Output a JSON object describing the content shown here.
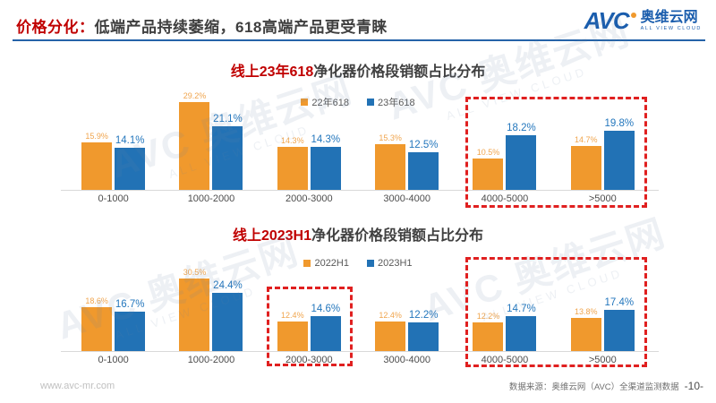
{
  "header": {
    "title_red": "价格分化：",
    "title_rest": "低端产品持续萎缩，618高端产品更受青睐"
  },
  "logo": {
    "abbr": "AVC",
    "name": "奥维云网",
    "tagline": "ALL VIEW CLOUD"
  },
  "watermark": {
    "main": "AVC 奥维云网",
    "sub": "ALL VIEW CLOUD"
  },
  "chart_data": [
    {
      "type": "bar",
      "title": "线上23年618净化器价格段销额占比分布",
      "title_red": "线上23年618",
      "title_rest": "净化器价格段销额占比分布",
      "unit": "%",
      "ylim": [
        0,
        32
      ],
      "grid": false,
      "legend_position": "top-center",
      "categories": [
        "0-1000",
        "1000-2000",
        "2000-3000",
        "3000-4000",
        "4000-5000",
        ">5000"
      ],
      "series": [
        {
          "name": "22年618",
          "color": "#F0992D",
          "values": [
            15.9,
            29.2,
            14.3,
            15.3,
            10.5,
            14.7
          ]
        },
        {
          "name": "23年618",
          "color": "#2272B5",
          "values": [
            14.1,
            21.1,
            14.3,
            12.5,
            18.2,
            19.8
          ]
        }
      ],
      "highlighted_categories": [
        "4000-5000",
        ">5000"
      ]
    },
    {
      "type": "bar",
      "title": "线上2023H1净化器价格段销额占比分布",
      "title_red": "线上2023H1",
      "title_rest": "净化器价格段销额占比分布",
      "unit": "%",
      "ylim": [
        0,
        32
      ],
      "grid": false,
      "legend_position": "top-center",
      "categories": [
        "0-1000",
        "1000-2000",
        "2000-3000",
        "3000-4000",
        "4000-5000",
        ">5000"
      ],
      "series": [
        {
          "name": "2022H1",
          "color": "#F0992D",
          "values": [
            18.6,
            30.5,
            12.4,
            12.4,
            12.2,
            13.8
          ]
        },
        {
          "name": "2023H1",
          "color": "#2272B5",
          "values": [
            16.7,
            24.4,
            14.6,
            12.2,
            14.7,
            17.4
          ]
        }
      ],
      "highlighted_categories": [
        "2000-3000",
        "4000-5000",
        ">5000"
      ]
    }
  ],
  "colors": {
    "orange": "#F0992D",
    "blue": "#2272B5",
    "title_red": "#C00000",
    "highlight_box_red": "#E02020",
    "header_rule_blue": "#2563A8"
  },
  "footer": {
    "website": "www.avc-mr.com",
    "source": "数据来源：奥维云网（AVC）全渠道监测数据",
    "page": "-10-"
  }
}
